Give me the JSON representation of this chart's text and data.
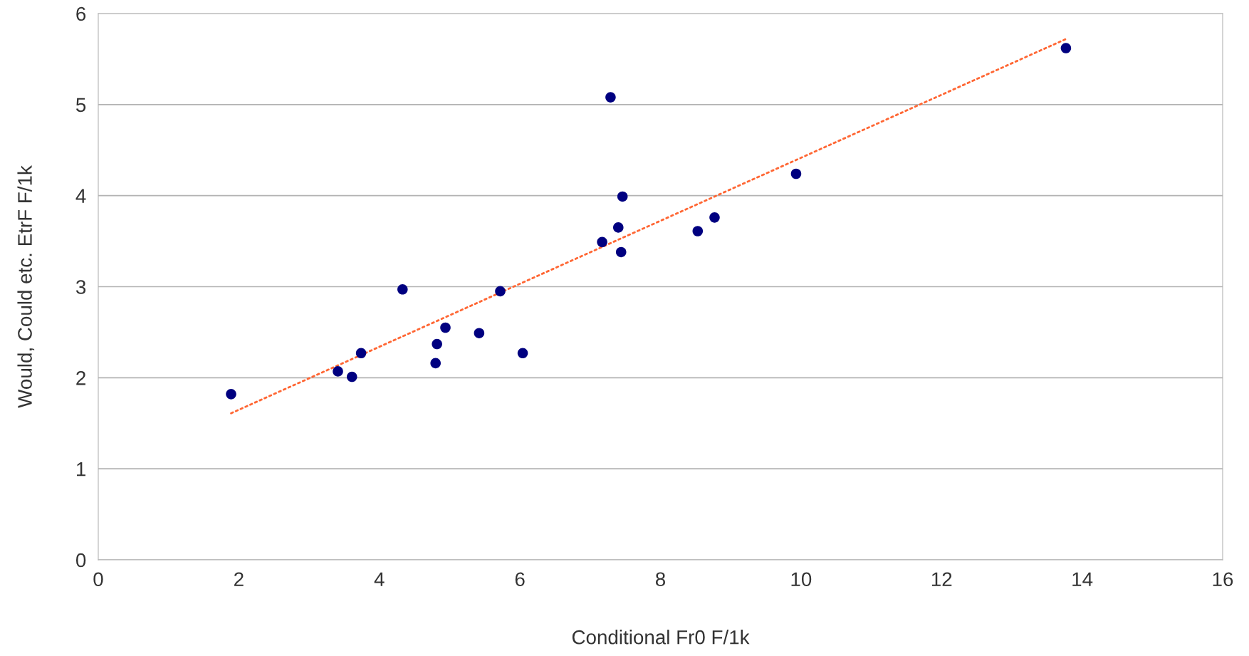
{
  "chart_data": {
    "type": "scatter",
    "xlabel": "Conditional Fr0 F/1k",
    "ylabel": "Would, Could etc. EtrF F/1k",
    "xlim": [
      0,
      16
    ],
    "xticks": [
      0,
      2,
      4,
      6,
      8,
      10,
      12,
      14,
      16
    ],
    "ylim": [
      0,
      6
    ],
    "yticks": [
      0,
      1,
      2,
      3,
      4,
      5,
      6
    ],
    "grid": "y",
    "marker": "circle",
    "series": [
      {
        "color": "#000080",
        "x": [
          1.89,
          3.41,
          3.61,
          3.74,
          4.33,
          4.8,
          4.82,
          4.94,
          5.42,
          5.72,
          6.04,
          7.17,
          7.29,
          7.4,
          7.44,
          7.46,
          8.53,
          8.77,
          9.93,
          13.77
        ],
        "values": [
          1.82,
          2.07,
          2.01,
          2.27,
          2.97,
          2.16,
          2.37,
          2.55,
          2.49,
          2.95,
          2.27,
          3.49,
          5.08,
          3.65,
          3.38,
          3.99,
          3.61,
          3.76,
          4.24,
          5.62
        ]
      },
      {
        "type": "line",
        "color": "#ff6633",
        "line_style": "dotted",
        "marker": "none",
        "x": [
          1.89,
          13.77
        ],
        "values": [
          1.61,
          5.72
        ]
      }
    ]
  }
}
